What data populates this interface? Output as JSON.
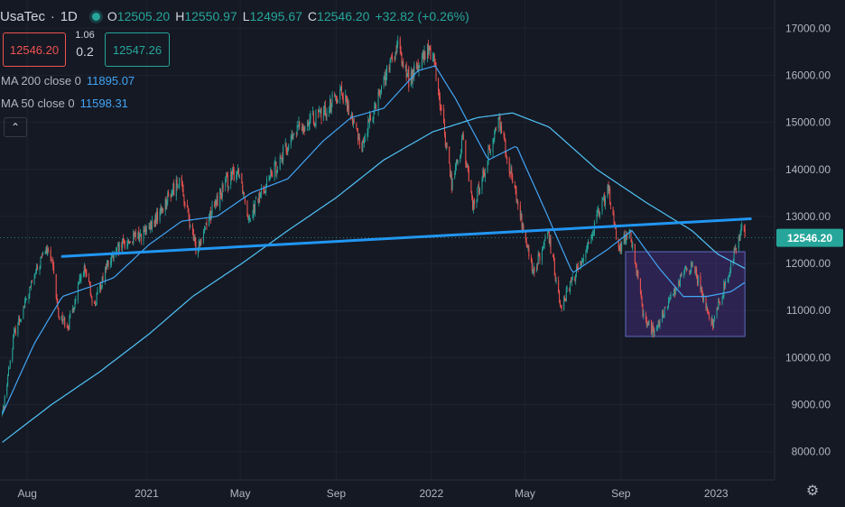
{
  "header": {
    "symbol": "UsaTec",
    "separator": "·",
    "interval": "1D",
    "open_label": "O",
    "open": "12505.20",
    "high_label": "H",
    "high": "12550.97",
    "low_label": "L",
    "low": "12495.67",
    "close_label": "C",
    "close": "12546.20",
    "change": "+32.82 (+0.26%)"
  },
  "trade": {
    "sell": "12546.20",
    "spread_top": "1.06",
    "spread_bottom": "0.2",
    "buy": "12547.26"
  },
  "indicators": [
    {
      "label": "MA 200 close 0",
      "value": "11895.07"
    },
    {
      "label": "MA 50 close 0",
      "value": "11598.31"
    }
  ],
  "colors": {
    "up": "#26a69a",
    "down": "#ef5350",
    "ma_line": "#42a5f5",
    "trend_line": "#2196f3",
    "box_fill": "#673ab7",
    "background": "#151924"
  },
  "icons": {
    "collapse": "chevron-up-icon",
    "settings": "gear-icon"
  },
  "chart_data": {
    "type": "candlestick",
    "symbol": "UsaTec",
    "interval": "1D",
    "ylim": [
      7400,
      17600
    ],
    "y_ticks": [
      "17000.00",
      "16000.00",
      "15000.00",
      "14000.00",
      "13000.00",
      "12000.00",
      "11000.00",
      "10000.00",
      "9000.00",
      "8000.00"
    ],
    "x_ticks": [
      "Aug",
      "2021",
      "May",
      "Sep",
      "2022",
      "May",
      "Sep",
      "2023"
    ],
    "last_price": "12546.20",
    "price_path": [
      [
        "2020-06-30",
        8800
      ],
      [
        "2020-07-15",
        10500
      ],
      [
        "2020-08-10",
        11700
      ],
      [
        "2020-08-24",
        12300
      ],
      [
        "2020-09-01",
        12100
      ],
      [
        "2020-09-10",
        10900
      ],
      [
        "2020-09-23",
        10700
      ],
      [
        "2020-10-12",
        11900
      ],
      [
        "2020-10-26",
        11100
      ],
      [
        "2020-11-09",
        11900
      ],
      [
        "2020-12-01",
        12400
      ],
      [
        "2021-01-04",
        12700
      ],
      [
        "2021-02-12",
        13800
      ],
      [
        "2021-03-05",
        12300
      ],
      [
        "2021-03-19",
        12900
      ],
      [
        "2021-04-12",
        13700
      ],
      [
        "2021-04-29",
        14000
      ],
      [
        "2021-05-12",
        13000
      ],
      [
        "2021-06-10",
        13900
      ],
      [
        "2021-07-15",
        14900
      ],
      [
        "2021-08-16",
        15200
      ],
      [
        "2021-09-07",
        15700
      ],
      [
        "2021-10-04",
        14500
      ],
      [
        "2021-10-25",
        15600
      ],
      [
        "2021-11-19",
        16600
      ],
      [
        "2021-12-03",
        15900
      ],
      [
        "2021-12-27",
        16500
      ],
      [
        "2022-01-03",
        16500
      ],
      [
        "2022-01-27",
        13700
      ],
      [
        "2022-02-10",
        14600
      ],
      [
        "2022-02-24",
        13200
      ],
      [
        "2022-03-29",
        15100
      ],
      [
        "2022-04-12",
        14000
      ],
      [
        "2022-05-11",
        11800
      ],
      [
        "2022-05-31",
        12600
      ],
      [
        "2022-06-16",
        11100
      ],
      [
        "2022-07-11",
        12000
      ],
      [
        "2022-08-16",
        13600
      ],
      [
        "2022-08-29",
        12300
      ],
      [
        "2022-09-12",
        12700
      ],
      [
        "2022-09-30",
        10900
      ],
      [
        "2022-10-13",
        10500
      ],
      [
        "2022-11-10",
        11500
      ],
      [
        "2022-12-01",
        12000
      ],
      [
        "2022-12-28",
        10700
      ],
      [
        "2023-01-11",
        11500
      ],
      [
        "2023-01-26",
        12300
      ],
      [
        "2023-02-02",
        12800
      ],
      [
        "2023-02-07",
        12546
      ]
    ],
    "series": [
      {
        "name": "MA 200 close 0",
        "last_value": 11895.07,
        "points": [
          [
            "2020-06-30",
            8200
          ],
          [
            "2020-09-01",
            9000
          ],
          [
            "2020-11-02",
            9700
          ],
          [
            "2021-01-04",
            10500
          ],
          [
            "2021-03-01",
            11300
          ],
          [
            "2021-05-03",
            12000
          ],
          [
            "2021-07-01",
            12700
          ],
          [
            "2021-09-01",
            13400
          ],
          [
            "2021-11-01",
            14200
          ],
          [
            "2022-01-03",
            14800
          ],
          [
            "2022-03-01",
            15100
          ],
          [
            "2022-04-15",
            15200
          ],
          [
            "2022-06-01",
            14900
          ],
          [
            "2022-08-01",
            14000
          ],
          [
            "2022-10-03",
            13300
          ],
          [
            "2022-12-01",
            12700
          ],
          [
            "2023-01-03",
            12200
          ],
          [
            "2023-02-07",
            11895
          ]
        ]
      },
      {
        "name": "MA 50 close 0",
        "last_value": 11598.31,
        "points": [
          [
            "2020-06-30",
            8800
          ],
          [
            "2020-08-10",
            10300
          ],
          [
            "2020-09-15",
            11300
          ],
          [
            "2020-10-20",
            11500
          ],
          [
            "2020-11-20",
            11700
          ],
          [
            "2021-01-04",
            12400
          ],
          [
            "2021-02-15",
            12900
          ],
          [
            "2021-04-01",
            13000
          ],
          [
            "2021-05-15",
            13500
          ],
          [
            "2021-07-01",
            13800
          ],
          [
            "2021-08-15",
            14600
          ],
          [
            "2021-09-20",
            15100
          ],
          [
            "2021-11-01",
            15300
          ],
          [
            "2021-12-15",
            16100
          ],
          [
            "2022-01-06",
            16200
          ],
          [
            "2022-02-01",
            15500
          ],
          [
            "2022-03-15",
            14200
          ],
          [
            "2022-04-20",
            14500
          ],
          [
            "2022-05-25",
            13200
          ],
          [
            "2022-07-01",
            11800
          ],
          [
            "2022-08-15",
            12300
          ],
          [
            "2022-09-15",
            12700
          ],
          [
            "2022-10-20",
            11900
          ],
          [
            "2022-11-20",
            11300
          ],
          [
            "2022-12-20",
            11300
          ],
          [
            "2023-01-20",
            11400
          ],
          [
            "2023-02-07",
            11598
          ]
        ]
      }
    ],
    "trend_line": [
      [
        "2020-09-15",
        12150
      ],
      [
        "2023-02-14",
        12950
      ]
    ],
    "range_box": {
      "x": [
        "2022-09-07",
        "2023-02-07"
      ],
      "y": [
        10450,
        12250
      ]
    }
  }
}
